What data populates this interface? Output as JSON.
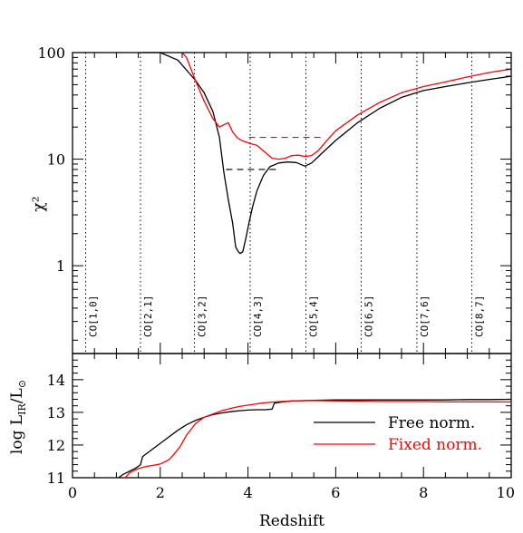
{
  "chart_data": [
    {
      "type": "line",
      "ylabel": "χ²",
      "yscale": "log",
      "xlim": [
        0,
        10
      ],
      "ylim": [
        0.15,
        100
      ],
      "y_ticklabels": [
        "1",
        "10",
        "100"
      ],
      "reference_lines": [
        {
          "label": "CO[1,0]",
          "x": 0.3
        },
        {
          "label": "CO[2,1]",
          "x": 1.55
        },
        {
          "label": "CO[3,2]",
          "x": 2.78
        },
        {
          "label": "CO[4,3]",
          "x": 4.05
        },
        {
          "label": "CO[5,4]",
          "x": 5.32
        },
        {
          "label": "CO[6,5]",
          "x": 6.58
        },
        {
          "label": "CO[7,6]",
          "x": 7.85
        },
        {
          "label": "CO[8,7]",
          "x": 9.1
        }
      ],
      "series": [
        {
          "name": "Free norm.",
          "color": "#000000",
          "x": [
            1.6,
            2.0,
            2.4,
            2.8,
            3.0,
            3.2,
            3.35,
            3.45,
            3.55,
            3.65,
            3.72,
            3.78,
            3.82,
            3.88,
            3.95,
            4.02,
            4.1,
            4.2,
            4.35,
            4.5,
            4.7,
            4.9,
            5.1,
            5.3,
            5.45,
            5.7,
            6.0,
            6.5,
            7.0,
            7.5,
            8.0,
            8.5,
            9.0,
            9.5,
            10.0
          ],
          "y": [
            120,
            110,
            85,
            55,
            42,
            28,
            16,
            7.5,
            4.2,
            2.5,
            1.5,
            1.35,
            1.3,
            1.35,
            1.8,
            2.5,
            3.5,
            5.0,
            7.0,
            8.5,
            9.2,
            9.4,
            9.3,
            8.6,
            9.2,
            11.5,
            15,
            22,
            30,
            38,
            44,
            48,
            52,
            56,
            60
          ]
        },
        {
          "name": "Fixed norm.",
          "color": "#ff0000",
          "x": [
            2.5,
            2.6,
            2.8,
            3.0,
            3.2,
            3.35,
            3.45,
            3.55,
            3.65,
            3.75,
            3.85,
            3.95,
            4.05,
            4.2,
            4.4,
            4.55,
            4.7,
            4.85,
            5.0,
            5.15,
            5.3,
            5.45,
            5.6,
            5.8,
            6.0,
            6.5,
            7.0,
            7.5,
            8.0,
            8.5,
            9.0,
            9.5,
            10.0
          ],
          "y": [
            120,
            90,
            55,
            35,
            24,
            20,
            21,
            22,
            18,
            16,
            15,
            14.5,
            14,
            13.5,
            11.5,
            10.2,
            10.0,
            10.2,
            10.8,
            10.9,
            10.6,
            10.8,
            12,
            15,
            18.5,
            26,
            34,
            42,
            48,
            53,
            59,
            65,
            70
          ]
        }
      ],
      "dashed_lines": [
        {
          "color": "#ff0000",
          "x": [
            4.02,
            5.7
          ],
          "y": [
            16,
            16
          ]
        },
        {
          "color": "#000000",
          "x": [
            3.5,
            4.7
          ],
          "y": [
            8,
            8
          ]
        }
      ]
    },
    {
      "type": "line",
      "xlabel": "Redshift",
      "ylabel": "log L_IR/L_⊙",
      "xlim": [
        0,
        10
      ],
      "ylim": [
        11,
        14.8
      ],
      "x_ticklabels": [
        "0",
        "2",
        "4",
        "6",
        "8",
        "10"
      ],
      "y_ticklabels": [
        "11",
        "12",
        "13",
        "14"
      ],
      "legend_placement": "bottom-right",
      "series": [
        {
          "name": "Free norm.",
          "color": "#000000",
          "x": [
            1.05,
            1.15,
            1.3,
            1.45,
            1.55,
            1.6,
            1.8,
            2.0,
            2.2,
            2.4,
            2.6,
            2.8,
            3.0,
            3.2,
            3.4,
            3.6,
            3.8,
            4.0,
            4.2,
            4.4,
            4.55,
            4.6,
            4.8,
            5.0,
            5.5,
            6.0,
            6.5,
            7.0,
            7.5,
            8.0,
            8.5,
            9.0,
            9.5,
            10.0
          ],
          "y": [
            11.0,
            11.1,
            11.2,
            11.3,
            11.4,
            11.65,
            11.85,
            12.05,
            12.25,
            12.45,
            12.62,
            12.75,
            12.85,
            12.93,
            12.98,
            13.02,
            13.05,
            13.07,
            13.08,
            13.08,
            13.1,
            13.28,
            13.32,
            13.35,
            13.37,
            13.38,
            13.38,
            13.38,
            13.38,
            13.38,
            13.38,
            13.39,
            13.39,
            13.4
          ]
        },
        {
          "name": "Fixed norm.",
          "color": "#ff0000",
          "x": [
            1.2,
            1.3,
            1.45,
            1.55,
            1.7,
            1.85,
            2.0,
            2.2,
            2.3,
            2.45,
            2.6,
            2.8,
            3.0,
            3.2,
            3.4,
            3.6,
            3.8,
            4.0,
            4.3,
            4.6,
            5.0,
            5.5,
            6.0,
            6.5,
            7.0,
            7.5,
            8.0,
            8.5,
            9.0,
            9.5,
            10.0
          ],
          "y": [
            11.0,
            11.15,
            11.25,
            11.3,
            11.35,
            11.38,
            11.42,
            11.55,
            11.7,
            11.95,
            12.3,
            12.65,
            12.85,
            12.95,
            13.05,
            13.12,
            13.18,
            13.22,
            13.28,
            13.32,
            13.35,
            13.36,
            13.35,
            13.34,
            13.33,
            13.33,
            13.33,
            13.32,
            13.32,
            13.32,
            13.32
          ]
        }
      ]
    }
  ]
}
